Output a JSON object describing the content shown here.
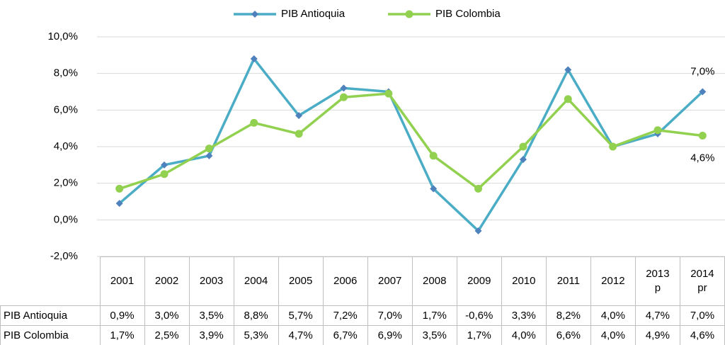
{
  "chart_data": {
    "type": "line",
    "categories": [
      "2001",
      "2002",
      "2003",
      "2004",
      "2005",
      "2006",
      "2007",
      "2008",
      "2009",
      "2010",
      "2011",
      "2012",
      "2013 p",
      "2014 pr"
    ],
    "series": [
      {
        "name": "PIB Antioquia",
        "color": "#4bacc6",
        "marker_color": "#4f81bd",
        "values": [
          0.9,
          3.0,
          3.5,
          8.8,
          5.7,
          7.2,
          7.0,
          1.7,
          -0.6,
          3.3,
          8.2,
          4.0,
          4.7,
          7.0
        ],
        "value_labels": [
          "0,9%",
          "3,0%",
          "3,5%",
          "8,8%",
          "5,7%",
          "7,2%",
          "7,0%",
          "1,7%",
          "-0,6%",
          "3,3%",
          "8,2%",
          "4,0%",
          "4,7%",
          "7,0%"
        ]
      },
      {
        "name": "PIB Colombia",
        "color": "#92d050",
        "marker_color": "#92d050",
        "values": [
          1.7,
          2.5,
          3.9,
          5.3,
          4.7,
          6.7,
          6.9,
          3.5,
          1.7,
          4.0,
          6.6,
          4.0,
          4.9,
          4.6
        ],
        "value_labels": [
          "1,7%",
          "2,5%",
          "3,9%",
          "5,3%",
          "4,7%",
          "6,7%",
          "6,9%",
          "3,5%",
          "1,7%",
          "4,0%",
          "6,6%",
          "4,0%",
          "4,9%",
          "4,6%"
        ]
      }
    ],
    "ylim": [
      -2,
      10
    ],
    "yticks": [
      {
        "value": -2,
        "label": "-2,0%"
      },
      {
        "value": 0,
        "label": "0,0%"
      },
      {
        "value": 2,
        "label": "2,0%"
      },
      {
        "value": 4,
        "label": "4,0%"
      },
      {
        "value": 6,
        "label": "6,0%"
      },
      {
        "value": 8,
        "label": "8,0%"
      },
      {
        "value": 10,
        "label": "10,0%"
      }
    ],
    "grid": true,
    "legend": "top"
  }
}
